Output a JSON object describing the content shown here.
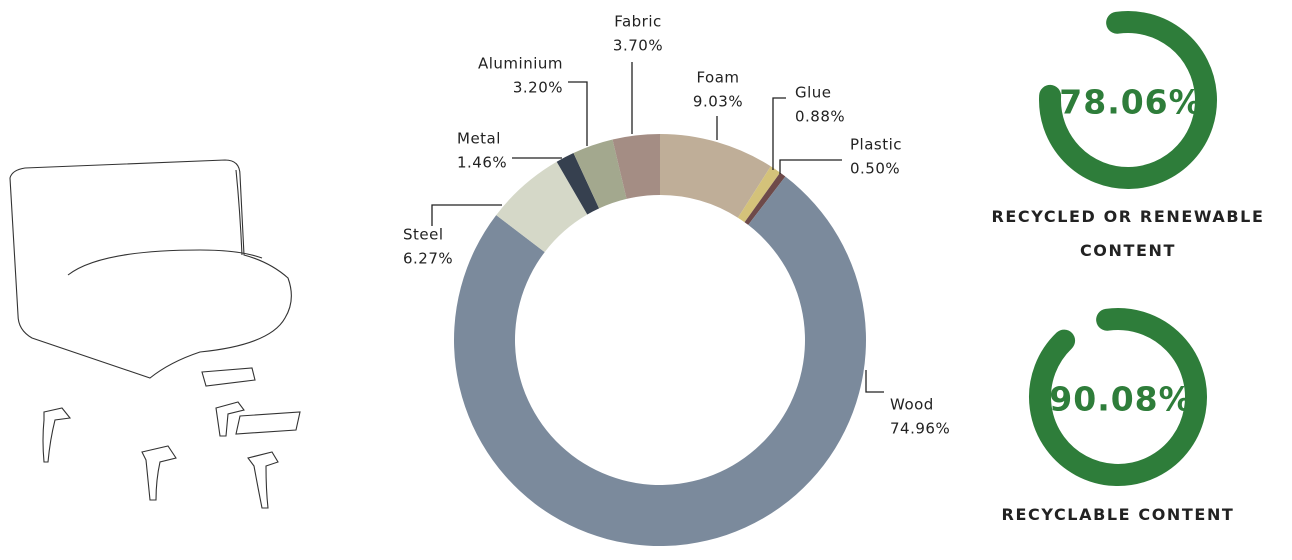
{
  "chart_data": [
    {
      "type": "pie",
      "donut": true,
      "categories": [
        "Foam",
        "Glue",
        "Plastic",
        "Wood",
        "Steel",
        "Metal",
        "Aluminium",
        "Fabric"
      ],
      "values": [
        9.03,
        0.88,
        0.5,
        74.96,
        6.27,
        1.46,
        3.2,
        3.7
      ],
      "value_labels": [
        "9.03%",
        "0.88%",
        "0.50%",
        "74.96%",
        "6.27%",
        "1.46%",
        "3.20%",
        "3.70%"
      ],
      "colors": [
        "#bfae98",
        "#d4c27a",
        "#6e4a4a",
        "#7b8a9c",
        "#d5d8c8",
        "#36404f",
        "#a3a88e",
        "#a48d84"
      ]
    },
    {
      "type": "gauge",
      "values": [
        78.06
      ],
      "value_labels": [
        "78.06%"
      ],
      "ylim": [
        0,
        100
      ],
      "title": "RECYCLED OR RENEWABLE CONTENT",
      "color": "#2e7d3a"
    },
    {
      "type": "gauge",
      "values": [
        90.08
      ],
      "value_labels": [
        "90.08%"
      ],
      "ylim": [
        0,
        100
      ],
      "title": "RECYCLABLE CONTENT",
      "color": "#2e7d3a"
    }
  ]
}
